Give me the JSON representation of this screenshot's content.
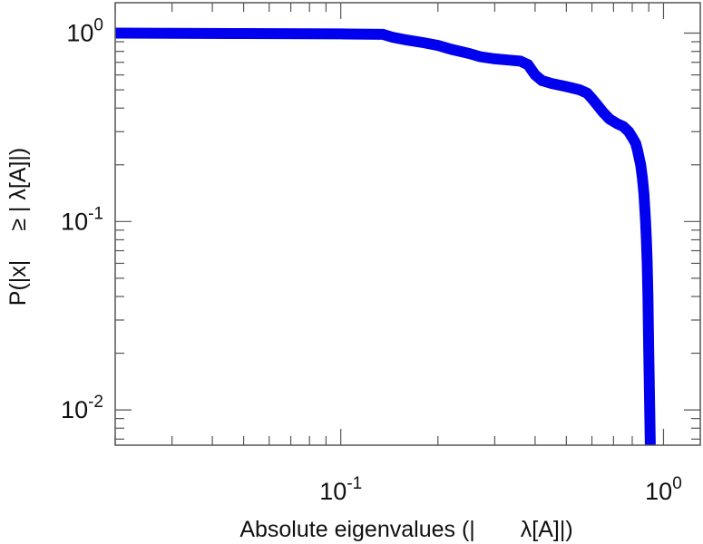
{
  "chart_data": {
    "type": "line",
    "title": "",
    "xlabel": "Absolute eigenvalues (|  λ[A]|)",
    "ylabel": "P(|x|  ≥ | λ[A]|)",
    "xscale": "log",
    "yscale": "log",
    "xlim": [
      0.02,
      1.3
    ],
    "ylim": [
      0.0065,
      1.45
    ],
    "grid": false,
    "legend": "none",
    "line_color": "#0000ee",
    "x_ticks": [
      {
        "value": 0.1,
        "base": "10",
        "exp": "-1"
      },
      {
        "value": 1,
        "base": "10",
        "exp": "0"
      }
    ],
    "y_ticks": [
      {
        "value": 1,
        "base": "10",
        "exp": "0"
      },
      {
        "value": 0.1,
        "base": "10",
        "exp": "-1"
      },
      {
        "value": 0.01,
        "base": "10",
        "exp": "-2"
      }
    ],
    "series": [
      {
        "x": [
          0.02,
          0.05,
          0.1,
          0.135,
          0.145,
          0.16,
          0.18,
          0.2,
          0.22,
          0.25,
          0.27,
          0.3,
          0.33,
          0.36,
          0.38,
          0.4,
          0.42,
          0.45,
          0.5,
          0.55,
          0.58,
          0.6,
          0.62,
          0.65,
          0.68,
          0.72,
          0.75,
          0.78,
          0.8,
          0.82,
          0.83,
          0.85,
          0.86,
          0.87,
          0.88,
          0.885,
          0.89,
          0.895,
          0.9,
          0.905,
          0.91
        ],
        "y": [
          1.0,
          0.995,
          0.99,
          0.985,
          0.95,
          0.92,
          0.89,
          0.86,
          0.82,
          0.78,
          0.75,
          0.73,
          0.72,
          0.71,
          0.68,
          0.6,
          0.56,
          0.54,
          0.52,
          0.5,
          0.48,
          0.45,
          0.42,
          0.38,
          0.35,
          0.33,
          0.32,
          0.3,
          0.28,
          0.26,
          0.24,
          0.2,
          0.17,
          0.14,
          0.1,
          0.08,
          0.06,
          0.04,
          0.02,
          0.012,
          0.0065
        ]
      }
    ]
  }
}
